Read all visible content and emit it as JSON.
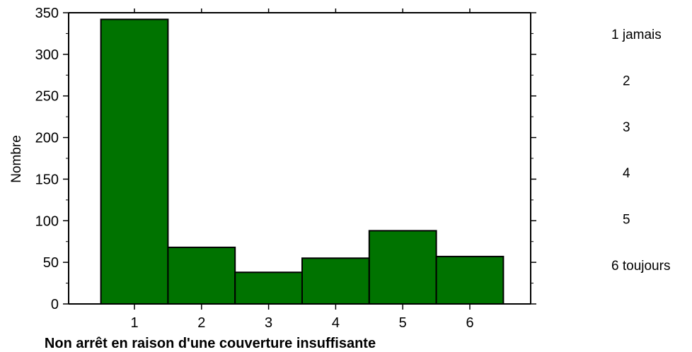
{
  "chart_data": {
    "type": "bar",
    "categories": [
      "1",
      "2",
      "3",
      "4",
      "5",
      "6"
    ],
    "values": [
      342,
      68,
      38,
      55,
      88,
      57
    ],
    "xlabel": "Non arrêt en raison d'une couverture insuffisante",
    "ylabel": "Nombre",
    "ylim": [
      0,
      350
    ],
    "yticks": [
      0,
      50,
      100,
      150,
      200,
      250,
      300,
      350
    ],
    "grid": false,
    "bar_color": "#007300",
    "legend_placement": "right",
    "legend": [
      "1 jamais",
      "2",
      "3",
      "4",
      "5",
      "6 toujours"
    ]
  }
}
